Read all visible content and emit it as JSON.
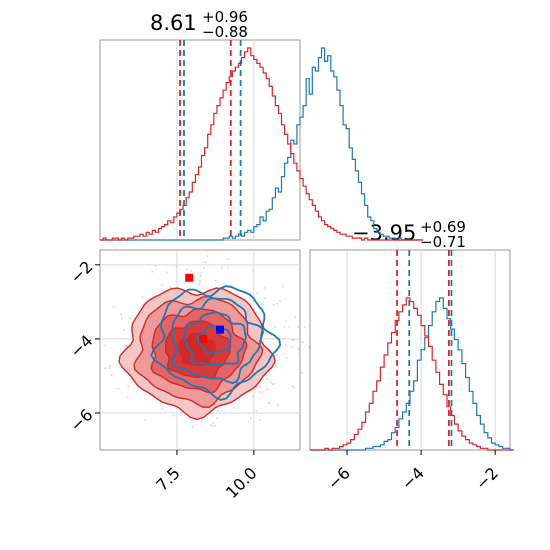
{
  "chart_data": {
    "type": "corner",
    "parameters": [
      {
        "estimate": "8.61",
        "upper": "+0.96",
        "lower": "−0.88",
        "range": [
          5.0,
          11.5
        ],
        "ticks": [
          "7.5",
          "10.0"
        ],
        "tick_values": [
          7.5,
          10.0
        ]
      },
      {
        "estimate": "−3.95",
        "upper": "+0.69",
        "lower": "−0.71",
        "range": [
          -7.0,
          -1.6
        ],
        "ticks": [
          "−6",
          "−4",
          "−2"
        ],
        "tick_values": [
          -6,
          -4,
          -2
        ]
      }
    ],
    "series": [
      {
        "color": "#1f77b4",
        "quantiles_param1": [
          7.73,
          9.57
        ],
        "quantiles_param2": [
          -4.32,
          -3.18
        ],
        "marker": [
          8.9,
          -3.75
        ],
        "hist_param1": {
          "bins_start": 5.0,
          "bin_width": 0.1,
          "counts": [
            0,
            0,
            0,
            0,
            0,
            0,
            0,
            0,
            0,
            0,
            0,
            0,
            0,
            0,
            0,
            0,
            0,
            0,
            0,
            0,
            0,
            0,
            0,
            0,
            0,
            0,
            0,
            0,
            0,
            0,
            0,
            0,
            0,
            0,
            0,
            0,
            0,
            0,
            0,
            0,
            1,
            1,
            2,
            1,
            2,
            3,
            2,
            4,
            5,
            4,
            7,
            8,
            12,
            10,
            15,
            16,
            22,
            27,
            25,
            33,
            40,
            43,
            52,
            50,
            60,
            64,
            70,
            84,
            76,
            90,
            88,
            95,
            100,
            93,
            96,
            88,
            85,
            78,
            70,
            60,
            58,
            48,
            42,
            36,
            30,
            24,
            18,
            12,
            10,
            6,
            4,
            3,
            2,
            2,
            1,
            1,
            0,
            1,
            0,
            0,
            0,
            0,
            0,
            0,
            0
          ]
        },
        "hist_param2": {
          "bins_start": -7.0,
          "bin_width": 0.1,
          "counts": [
            0,
            0,
            0,
            0,
            0,
            0,
            0,
            0,
            0,
            0,
            0,
            0,
            0,
            0,
            0,
            1,
            1,
            2,
            2,
            3,
            5,
            6,
            10,
            13,
            18,
            22,
            27,
            34,
            40,
            52,
            58,
            65,
            72,
            80,
            86,
            88,
            82,
            76,
            70,
            64,
            58,
            50,
            42,
            34,
            27,
            20,
            15,
            10,
            7,
            4,
            3,
            2,
            1,
            1,
            0
          ]
        }
      },
      {
        "color": "#d62728",
        "quantiles_param1": [
          7.6,
          9.25
        ],
        "quantiles_param2": [
          -4.65,
          -3.25
        ],
        "marker": [
          8.35,
          -4.0
        ],
        "marker2": [
          7.9,
          -2.35
        ],
        "hist_param1": {
          "bins_start": 5.0,
          "bin_width": 0.1,
          "counts": [
            0,
            1,
            0,
            0,
            1,
            1,
            0,
            1,
            0,
            1,
            1,
            2,
            2,
            3,
            2,
            4,
            3,
            5,
            4,
            6,
            7,
            8,
            10,
            9,
            12,
            14,
            16,
            18,
            22,
            25,
            30,
            34,
            38,
            44,
            48,
            55,
            60,
            66,
            70,
            74,
            78,
            82,
            85,
            88,
            90,
            92,
            95,
            98,
            100,
            96,
            94,
            92,
            90,
            87,
            84,
            80,
            75,
            70,
            66,
            60,
            55,
            50,
            45,
            40,
            36,
            32,
            28,
            24,
            21,
            18,
            15,
            12,
            10,
            8,
            7,
            6,
            5,
            4,
            3,
            3,
            2,
            2,
            1,
            1,
            1,
            0,
            1,
            0,
            0,
            0,
            0,
            0,
            0,
            0,
            0,
            0,
            0,
            0,
            0,
            0,
            0,
            0,
            0,
            0,
            0
          ]
        },
        "hist_param2": {
          "bins_start": -7.0,
          "bin_width": 0.1,
          "counts": [
            0,
            0,
            0,
            0,
            1,
            0,
            1,
            1,
            2,
            3,
            4,
            6,
            9,
            12,
            16,
            22,
            27,
            34,
            40,
            48,
            55,
            62,
            68,
            75,
            80,
            84,
            88,
            86,
            82,
            78,
            72,
            66,
            60,
            52,
            45,
            38,
            32,
            25,
            20,
            15,
            11,
            8,
            6,
            4,
            3,
            2,
            1,
            1,
            0,
            0,
            0,
            0,
            0,
            0,
            0
          ]
        }
      }
    ]
  }
}
